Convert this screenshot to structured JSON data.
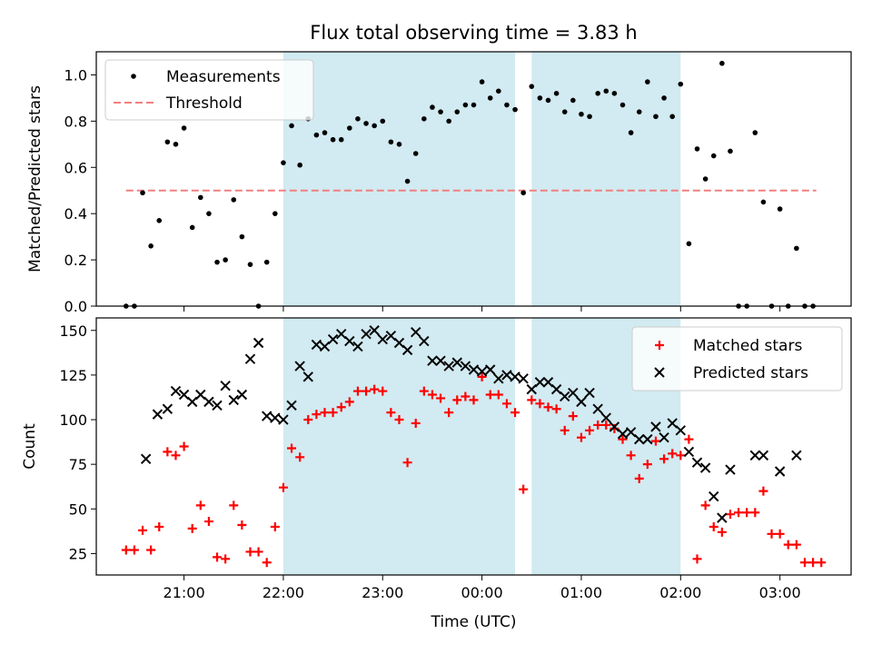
{
  "title": "Flux total observing time = 3.83 h",
  "chart_data": [
    {
      "type": "scatter",
      "ylabel": "Matched/Predicted stars",
      "ylim": [
        0,
        1.1
      ],
      "yticks": [
        0.0,
        0.2,
        0.4,
        0.6,
        0.8,
        1.0
      ],
      "ytick_labels": [
        "0.0",
        "0.2",
        "0.4",
        "0.6",
        "0.8",
        "1.0"
      ],
      "grid": false,
      "legend_position": "top-left",
      "legend": [
        {
          "label": "Measurements",
          "kind": "point",
          "color": "#000000"
        },
        {
          "label": "Threshold",
          "kind": "dashed-line",
          "color": "#f08080"
        }
      ],
      "threshold": {
        "name": "Threshold",
        "value": 0.5,
        "x_start": "20:25",
        "x_end": "03:22",
        "color": "#f08080"
      },
      "series": [
        {
          "name": "Measurements",
          "color": "#000000",
          "points": [
            [
              "20:25",
              0.0
            ],
            [
              "20:30",
              0.0
            ],
            [
              "20:35",
              0.49
            ],
            [
              "20:40",
              0.26
            ],
            [
              "20:45",
              0.37
            ],
            [
              "20:50",
              0.71
            ],
            [
              "20:55",
              0.7
            ],
            [
              "21:00",
              0.77
            ],
            [
              "21:05",
              0.34
            ],
            [
              "21:10",
              0.47
            ],
            [
              "21:15",
              0.4
            ],
            [
              "21:20",
              0.19
            ],
            [
              "21:25",
              0.2
            ],
            [
              "21:30",
              0.46
            ],
            [
              "21:35",
              0.3
            ],
            [
              "21:40",
              0.18
            ],
            [
              "21:45",
              0.0
            ],
            [
              "21:50",
              0.19
            ],
            [
              "21:55",
              0.4
            ],
            [
              "22:00",
              0.62
            ],
            [
              "22:05",
              0.78
            ],
            [
              "22:10",
              0.61
            ],
            [
              "22:15",
              0.81
            ],
            [
              "22:20",
              0.74
            ],
            [
              "22:25",
              0.75
            ],
            [
              "22:30",
              0.72
            ],
            [
              "22:35",
              0.72
            ],
            [
              "22:40",
              0.77
            ],
            [
              "22:45",
              0.81
            ],
            [
              "22:50",
              0.79
            ],
            [
              "22:55",
              0.78
            ],
            [
              "23:00",
              0.8
            ],
            [
              "23:05",
              0.71
            ],
            [
              "23:10",
              0.7
            ],
            [
              "23:15",
              0.54
            ],
            [
              "23:20",
              0.66
            ],
            [
              "23:25",
              0.81
            ],
            [
              "23:30",
              0.86
            ],
            [
              "23:35",
              0.84
            ],
            [
              "23:40",
              0.8
            ],
            [
              "23:45",
              0.84
            ],
            [
              "23:50",
              0.87
            ],
            [
              "23:55",
              0.87
            ],
            [
              "00:00",
              0.97
            ],
            [
              "00:05",
              0.9
            ],
            [
              "00:10",
              0.93
            ],
            [
              "00:15",
              0.87
            ],
            [
              "00:20",
              0.85
            ],
            [
              "00:25",
              0.49
            ],
            [
              "00:30",
              0.95
            ],
            [
              "00:35",
              0.9
            ],
            [
              "00:40",
              0.89
            ],
            [
              "00:45",
              0.92
            ],
            [
              "00:50",
              0.84
            ],
            [
              "00:55",
              0.89
            ],
            [
              "01:00",
              0.83
            ],
            [
              "01:05",
              0.82
            ],
            [
              "01:10",
              0.92
            ],
            [
              "01:15",
              0.93
            ],
            [
              "01:20",
              0.92
            ],
            [
              "01:25",
              0.87
            ],
            [
              "01:30",
              0.75
            ],
            [
              "01:35",
              0.84
            ],
            [
              "01:40",
              0.97
            ],
            [
              "01:45",
              0.82
            ],
            [
              "01:50",
              0.9
            ],
            [
              "01:55",
              0.82
            ],
            [
              "02:00",
              0.96
            ],
            [
              "02:05",
              0.27
            ],
            [
              "02:10",
              0.68
            ],
            [
              "02:15",
              0.55
            ],
            [
              "02:20",
              0.65
            ],
            [
              "02:25",
              1.05
            ],
            [
              "02:30",
              0.67
            ],
            [
              "02:35",
              0.0
            ],
            [
              "02:40",
              0.0
            ],
            [
              "02:45",
              0.75
            ],
            [
              "02:50",
              0.45
            ],
            [
              "02:55",
              0.0
            ],
            [
              "03:00",
              0.42
            ],
            [
              "03:05",
              0.0
            ],
            [
              "03:10",
              0.25
            ],
            [
              "03:15",
              0.0
            ],
            [
              "03:20",
              0.0
            ]
          ]
        }
      ]
    },
    {
      "type": "scatter",
      "xlabel": "Time (UTC)",
      "ylabel": "Count",
      "ylim": [
        13,
        157
      ],
      "yticks": [
        25,
        50,
        75,
        100,
        125,
        150
      ],
      "ytick_labels": [
        "25",
        "50",
        "75",
        "100",
        "125",
        "150"
      ],
      "xticks": [
        "21:00",
        "22:00",
        "23:00",
        "00:00",
        "01:00",
        "02:00",
        "03:00"
      ],
      "xlim": [
        "20:07",
        "03:43"
      ],
      "grid": false,
      "legend_position": "top-right",
      "legend": [
        {
          "label": "Matched stars",
          "kind": "plus",
          "color": "#ff0000"
        },
        {
          "label": "Predicted stars",
          "kind": "cross",
          "color": "#000000"
        }
      ],
      "series": [
        {
          "name": "Matched stars",
          "color": "#ff0000",
          "marker": "plus",
          "points": [
            [
              "20:25",
              27
            ],
            [
              "20:30",
              27
            ],
            [
              "20:35",
              38
            ],
            [
              "20:40",
              27
            ],
            [
              "20:45",
              40
            ],
            [
              "20:50",
              82
            ],
            [
              "20:55",
              80
            ],
            [
              "21:00",
              85
            ],
            [
              "21:05",
              39
            ],
            [
              "21:10",
              52
            ],
            [
              "21:15",
              43
            ],
            [
              "21:20",
              23
            ],
            [
              "21:25",
              22
            ],
            [
              "21:30",
              52
            ],
            [
              "21:35",
              41
            ],
            [
              "21:40",
              26
            ],
            [
              "21:45",
              26
            ],
            [
              "21:50",
              20
            ],
            [
              "21:55",
              40
            ],
            [
              "22:00",
              62
            ],
            [
              "22:05",
              84
            ],
            [
              "22:10",
              79
            ],
            [
              "22:15",
              100
            ],
            [
              "22:20",
              103
            ],
            [
              "22:25",
              104
            ],
            [
              "22:30",
              104
            ],
            [
              "22:35",
              107
            ],
            [
              "22:40",
              110
            ],
            [
              "22:45",
              116
            ],
            [
              "22:50",
              116
            ],
            [
              "22:55",
              117
            ],
            [
              "23:00",
              116
            ],
            [
              "23:05",
              104
            ],
            [
              "23:10",
              100
            ],
            [
              "23:15",
              76
            ],
            [
              "23:20",
              98
            ],
            [
              "23:25",
              116
            ],
            [
              "23:30",
              114
            ],
            [
              "23:35",
              112
            ],
            [
              "23:40",
              104
            ],
            [
              "23:45",
              111
            ],
            [
              "23:50",
              113
            ],
            [
              "23:55",
              111
            ],
            [
              "00:00",
              124
            ],
            [
              "00:05",
              114
            ],
            [
              "00:10",
              114
            ],
            [
              "00:15",
              109
            ],
            [
              "00:20",
              104
            ],
            [
              "00:25",
              61
            ],
            [
              "00:30",
              111
            ],
            [
              "00:35",
              109
            ],
            [
              "00:40",
              107
            ],
            [
              "00:45",
              106
            ],
            [
              "00:50",
              94
            ],
            [
              "00:55",
              102
            ],
            [
              "01:00",
              90
            ],
            [
              "01:05",
              94
            ],
            [
              "01:10",
              97
            ],
            [
              "01:15",
              97
            ],
            [
              "01:20",
              95
            ],
            [
              "01:25",
              89
            ],
            [
              "01:30",
              80
            ],
            [
              "01:35",
              67
            ],
            [
              "01:40",
              75
            ],
            [
              "01:45",
              88
            ],
            [
              "01:50",
              78
            ],
            [
              "01:55",
              81
            ],
            [
              "02:00",
              80
            ],
            [
              "02:05",
              89
            ],
            [
              "02:10",
              22
            ],
            [
              "02:15",
              52
            ],
            [
              "02:20",
              40
            ],
            [
              "02:25",
              37
            ],
            [
              "02:30",
              47
            ],
            [
              "02:35",
              48
            ],
            [
              "02:40",
              48
            ],
            [
              "02:45",
              48
            ],
            [
              "02:50",
              60
            ],
            [
              "02:55",
              36
            ],
            [
              "03:00",
              36
            ],
            [
              "03:05",
              30
            ],
            [
              "03:10",
              30
            ],
            [
              "03:15",
              20
            ],
            [
              "03:20",
              20
            ],
            [
              "03:25",
              20
            ]
          ]
        },
        {
          "name": "Predicted stars",
          "color": "#000000",
          "marker": "cross",
          "points": [
            [
              "20:37",
              78
            ],
            [
              "20:44",
              103
            ],
            [
              "20:50",
              106
            ],
            [
              "20:55",
              116
            ],
            [
              "21:00",
              114
            ],
            [
              "21:05",
              110
            ],
            [
              "21:10",
              114
            ],
            [
              "21:15",
              110
            ],
            [
              "21:20",
              108
            ],
            [
              "21:25",
              119
            ],
            [
              "21:30",
              111
            ],
            [
              "21:35",
              114
            ],
            [
              "21:40",
              134
            ],
            [
              "21:45",
              143
            ],
            [
              "21:50",
              102
            ],
            [
              "21:55",
              101
            ],
            [
              "22:00",
              100
            ],
            [
              "22:05",
              108
            ],
            [
              "22:10",
              130
            ],
            [
              "22:15",
              124
            ],
            [
              "22:20",
              142
            ],
            [
              "22:25",
              141
            ],
            [
              "22:30",
              145
            ],
            [
              "22:35",
              148
            ],
            [
              "22:40",
              144
            ],
            [
              "22:45",
              141
            ],
            [
              "22:50",
              148
            ],
            [
              "22:55",
              150
            ],
            [
              "23:00",
              145
            ],
            [
              "23:05",
              147
            ],
            [
              "23:10",
              143
            ],
            [
              "23:15",
              139
            ],
            [
              "23:20",
              149
            ],
            [
              "23:25",
              144
            ],
            [
              "23:30",
              133
            ],
            [
              "23:35",
              133
            ],
            [
              "23:40",
              130
            ],
            [
              "23:45",
              132
            ],
            [
              "23:50",
              130
            ],
            [
              "23:55",
              128
            ],
            [
              "00:00",
              127
            ],
            [
              "00:05",
              128
            ],
            [
              "00:10",
              123
            ],
            [
              "00:15",
              125
            ],
            [
              "00:20",
              124
            ],
            [
              "00:25",
              123
            ],
            [
              "00:30",
              117
            ],
            [
              "00:35",
              121
            ],
            [
              "00:40",
              121
            ],
            [
              "00:45",
              117
            ],
            [
              "00:50",
              113
            ],
            [
              "00:55",
              115
            ],
            [
              "01:00",
              110
            ],
            [
              "01:05",
              115
            ],
            [
              "01:10",
              106
            ],
            [
              "01:15",
              101
            ],
            [
              "01:20",
              96
            ],
            [
              "01:25",
              92
            ],
            [
              "01:30",
              93
            ],
            [
              "01:35",
              89
            ],
            [
              "01:40",
              89
            ],
            [
              "01:45",
              96
            ],
            [
              "01:50",
              90
            ],
            [
              "01:55",
              98
            ],
            [
              "02:00",
              94
            ],
            [
              "02:05",
              82
            ],
            [
              "02:10",
              76
            ],
            [
              "02:15",
              73
            ],
            [
              "02:20",
              57
            ],
            [
              "02:25",
              45
            ],
            [
              "02:30",
              72
            ],
            [
              "02:45",
              80
            ],
            [
              "02:50",
              80
            ],
            [
              "03:00",
              71
            ],
            [
              "03:10",
              80
            ]
          ]
        }
      ]
    }
  ],
  "shaded_intervals": [
    {
      "start": "22:00",
      "end": "00:20",
      "color": "#add8e6"
    },
    {
      "start": "00:30",
      "end": "02:00",
      "color": "#add8e6"
    }
  ]
}
